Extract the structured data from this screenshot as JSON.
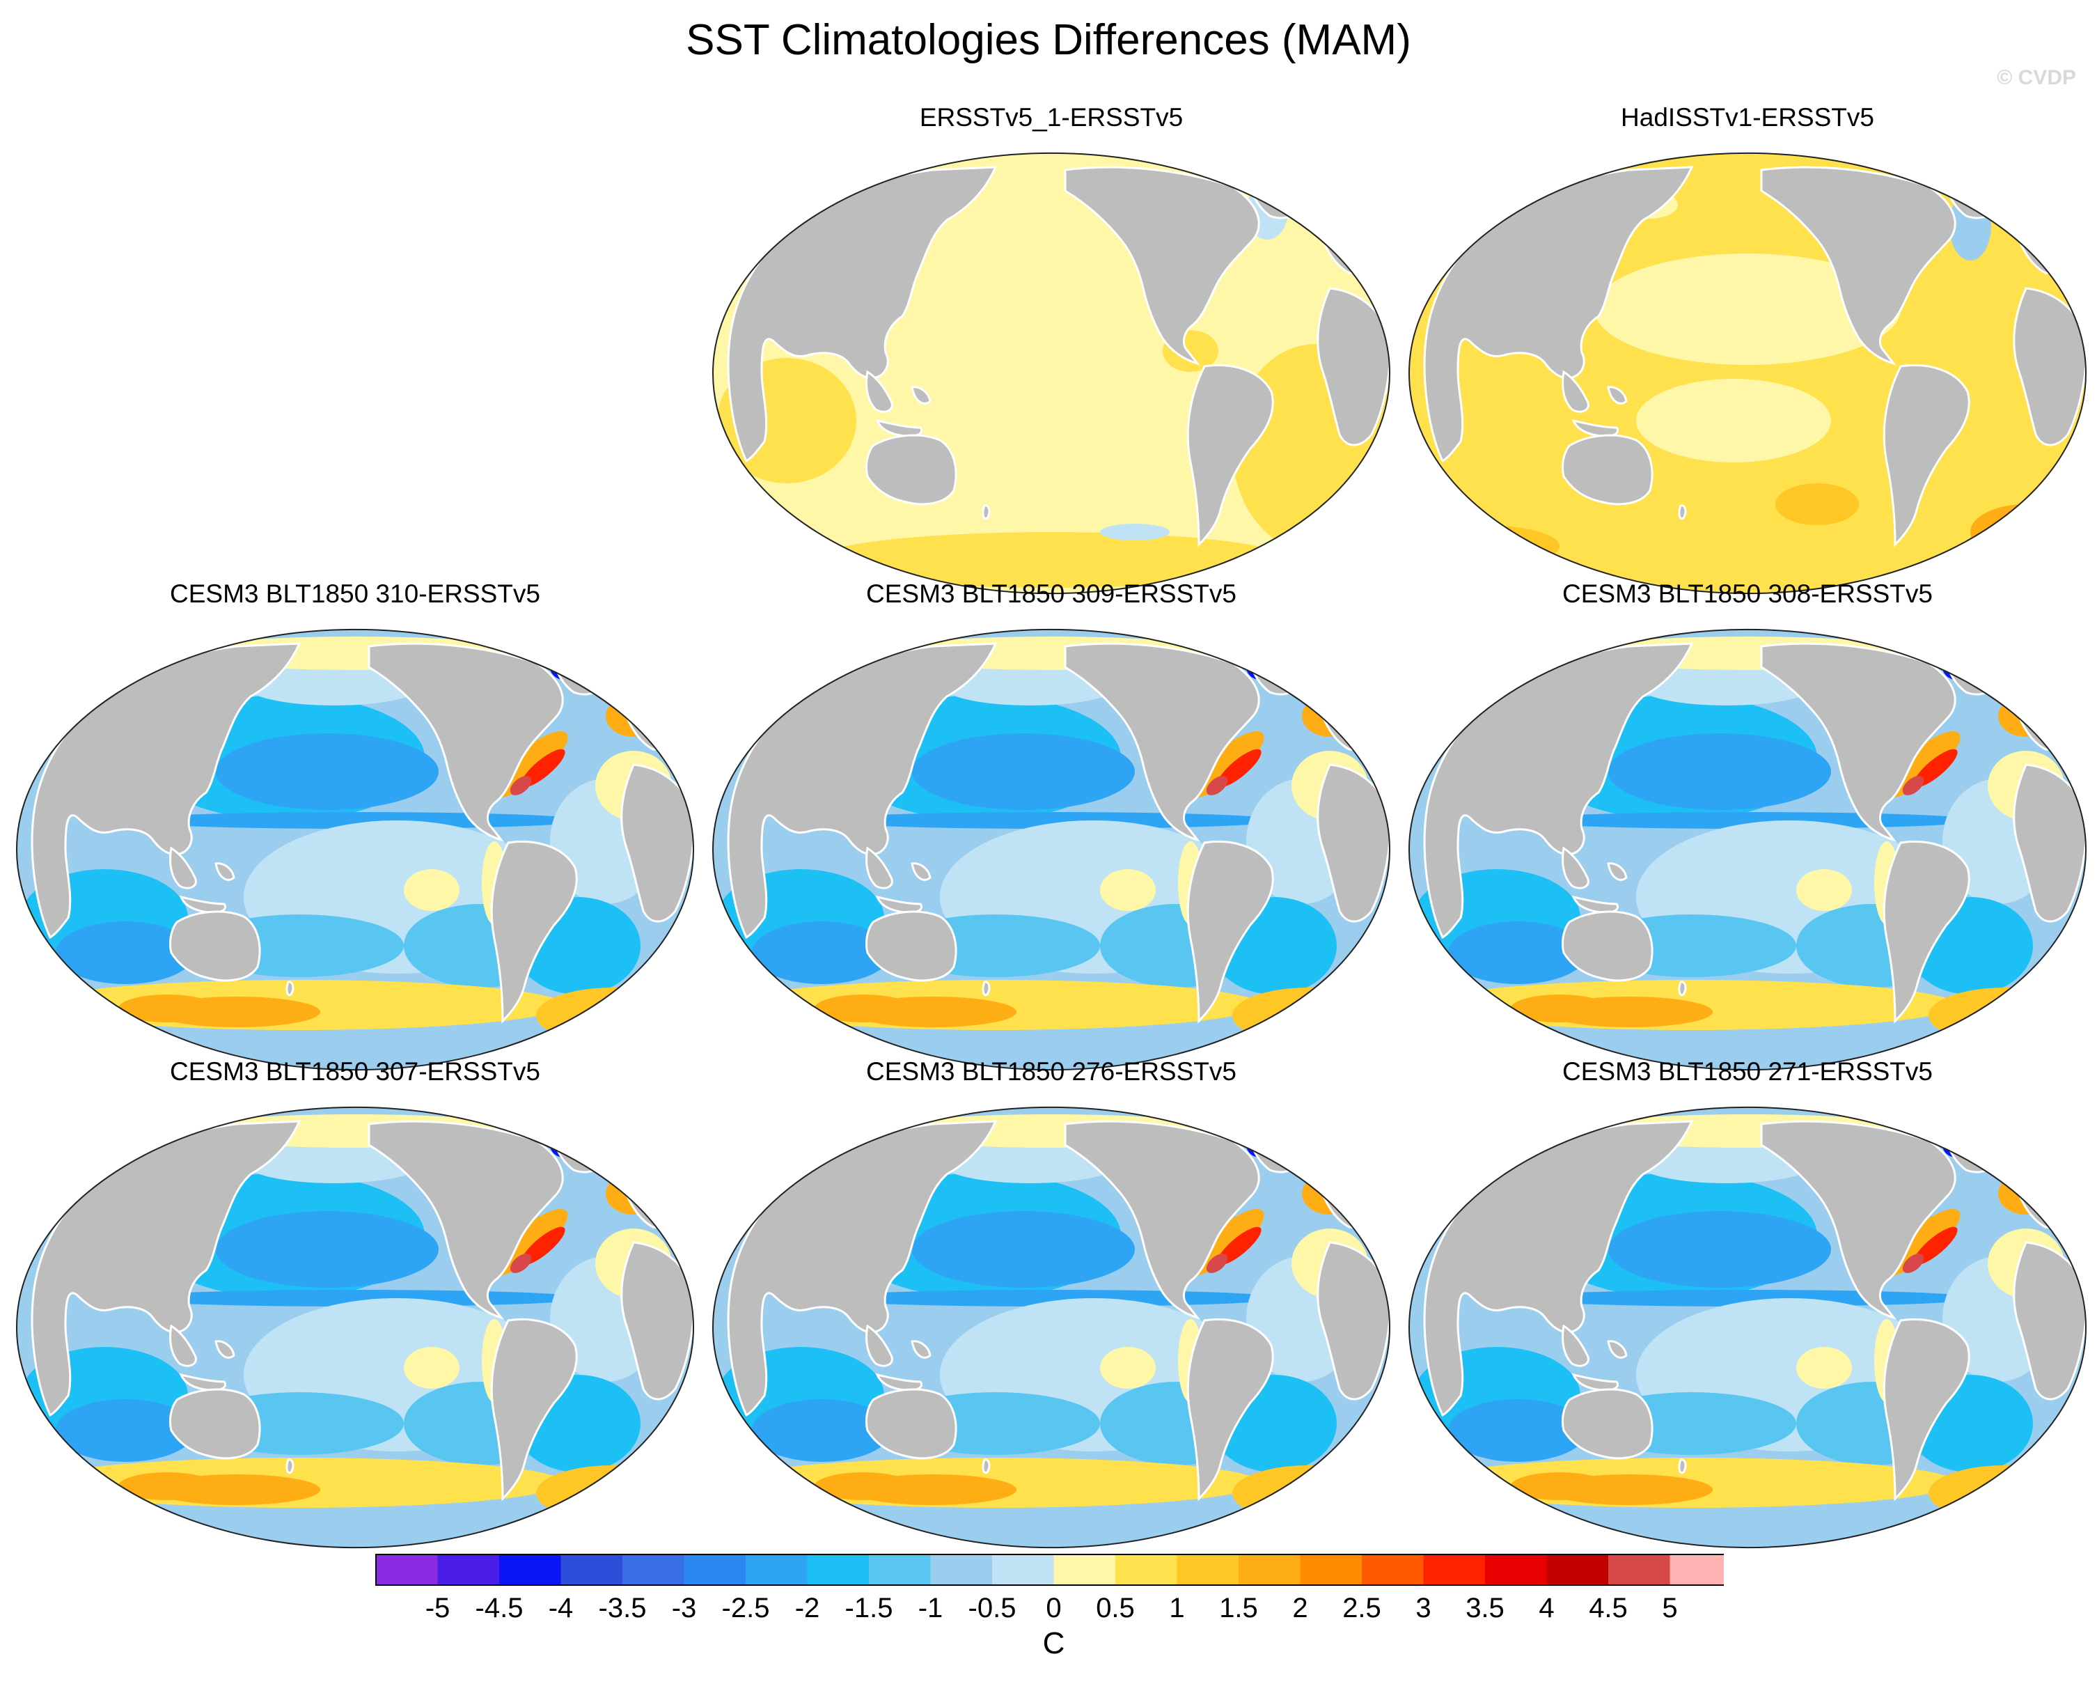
{
  "title": "SST Climatologies Differences (MAM)",
  "credit": "© CVDP",
  "colors": {
    "land": "#bdbdbd",
    "coast": "#ffffff",
    "border": "#222222"
  },
  "panels": [
    {
      "id": "ersstv5-1",
      "title": "ERSSTv5_1-ERSSTv5",
      "style": "obs_small"
    },
    {
      "id": "hadisstv1",
      "title": "HadISSTv1-ERSSTv5",
      "style": "obs_warm"
    },
    {
      "id": "cesm3-310",
      "title": "CESM3 BLT1850 310-ERSSTv5",
      "style": "model"
    },
    {
      "id": "cesm3-309",
      "title": "CESM3 BLT1850 309-ERSSTv5",
      "style": "model"
    },
    {
      "id": "cesm3-308",
      "title": "CESM3 BLT1850 308-ERSSTv5",
      "style": "model"
    },
    {
      "id": "cesm3-307",
      "title": "CESM3 BLT1850 307-ERSSTv5",
      "style": "model"
    },
    {
      "id": "cesm3-276",
      "title": "CESM3 BLT1850 276-ERSSTv5",
      "style": "model"
    },
    {
      "id": "cesm3-271",
      "title": "CESM3 BLT1850 271-ERSSTv5",
      "style": "model"
    }
  ],
  "colorbar": {
    "unit": "C",
    "labels": [
      "-5",
      "-4.5",
      "-4",
      "-3.5",
      "-3",
      "-2.5",
      "-2",
      "-1.5",
      "-1",
      "-0.5",
      "0",
      "0.5",
      "1",
      "1.5",
      "2",
      "2.5",
      "3",
      "3.5",
      "4",
      "4.5",
      "5"
    ],
    "colors": [
      "#8a2be2",
      "#4b1ee8",
      "#0a14f5",
      "#2c4ed8",
      "#3a6ee6",
      "#2a88f0",
      "#2ea4f5",
      "#1cc0f5",
      "#58c6f0",
      "#9acdee",
      "#bfe3f5",
      "#fff7a8",
      "#ffe04d",
      "#ffc726",
      "#ffad14",
      "#ff8c00",
      "#ff5a00",
      "#ff2200",
      "#e80000",
      "#c10000",
      "#d94848",
      "#ffb3b3"
    ]
  }
}
